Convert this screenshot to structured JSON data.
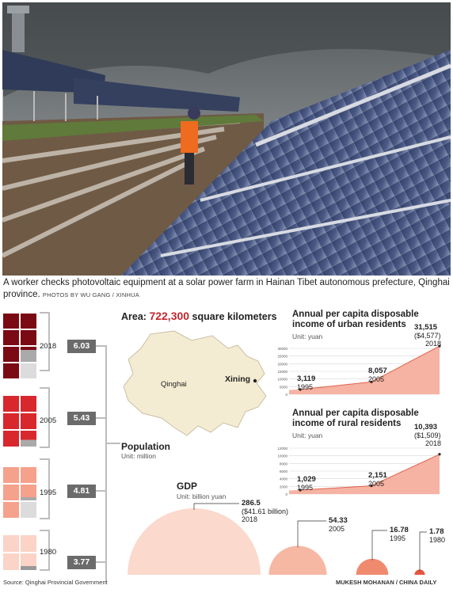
{
  "caption": {
    "text": "A worker checks photovoltaic equipment at a solar power farm in Hainan Tibet autonomous prefecture, Qinghai province.",
    "credit": "PHOTOS BY WU GANG / XINHUA"
  },
  "population": {
    "title": "Population",
    "unit": "Unit: million",
    "entries": [
      {
        "year": "2018",
        "value": "6.03",
        "value_num": 6.03,
        "color": "#7a0a14"
      },
      {
        "year": "2005",
        "value": "5.43",
        "value_num": 5.43,
        "color": "#d9272e"
      },
      {
        "year": "1995",
        "value": "4.81",
        "value_num": 4.81,
        "color": "#f6a18c"
      },
      {
        "year": "1980",
        "value": "3.77",
        "value_num": 3.77,
        "color": "#fbd3c7"
      }
    ]
  },
  "area": {
    "label": "Area:",
    "value": "722,300",
    "unit": "square kilometers",
    "map_label": "Qinghai",
    "city": "Xining"
  },
  "urban": {
    "title_line1": "Annual per capita disposable",
    "title_line2": "income of urban residents",
    "unit": "Unit: yuan",
    "ticks": [
      "30000",
      "25000",
      "20000",
      "15000",
      "10000",
      "5000",
      "0"
    ],
    "points": [
      {
        "year": "1995",
        "value": "3,119",
        "num": 3119
      },
      {
        "year": "2005",
        "value": "8,057",
        "num": 8057
      },
      {
        "year": "2018",
        "value": "31,515",
        "num": 31515,
        "usd": "($4,577)"
      }
    ]
  },
  "rural": {
    "title_line1": "Annual per capita disposable",
    "title_line2": "income of rural residents",
    "unit": "Unit: yuan",
    "ticks": [
      "12000",
      "10000",
      "8000",
      "6000",
      "4000",
      "2000",
      "0"
    ],
    "points": [
      {
        "year": "1995",
        "value": "1,029",
        "num": 1029
      },
      {
        "year": "2005",
        "value": "2,151",
        "num": 2151
      },
      {
        "year": "2018",
        "value": "10,393",
        "num": 10393,
        "usd": "($1,509)"
      }
    ]
  },
  "gdp": {
    "title": "GDP",
    "unit": "Unit: billion yuan",
    "entries": [
      {
        "year": "2018",
        "value": "286.5",
        "num": 286.5,
        "usd": "($41.61 billion)",
        "color": "#fbd9cc"
      },
      {
        "year": "2005",
        "value": "54.33",
        "num": 54.33,
        "color": "#f7b8a3"
      },
      {
        "year": "1995",
        "value": "16.78",
        "num": 16.78,
        "color": "#f08a6e"
      },
      {
        "year": "1980",
        "value": "1.78",
        "num": 1.78,
        "color": "#e4573f"
      }
    ]
  },
  "footer": {
    "source": "Source: Qinghai Provincial Government",
    "byline": "MUKESH MOHANAN / CHINA DAILY"
  }
}
